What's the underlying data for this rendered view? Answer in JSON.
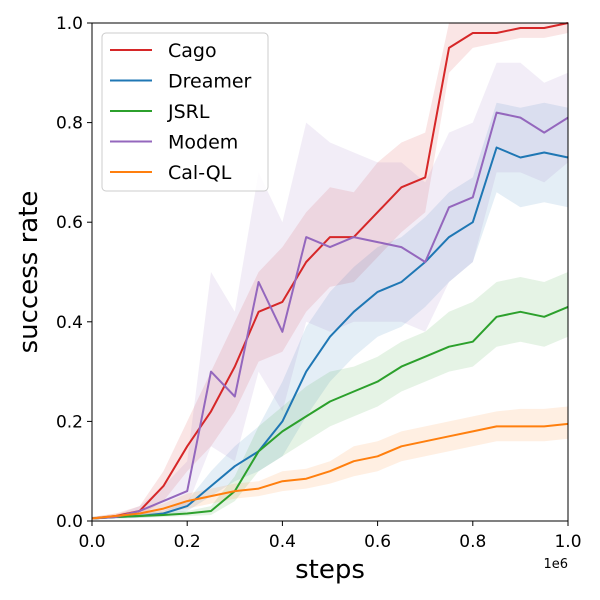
{
  "chart_data": {
    "type": "line",
    "title": "",
    "xlabel": "steps",
    "ylabel": "success rate",
    "x_offset_text": "1e6",
    "xlim": [
      0,
      1.0
    ],
    "ylim": [
      0,
      1.0
    ],
    "xticks": [
      0.0,
      0.2,
      0.4,
      0.6,
      0.8,
      1.0
    ],
    "xtick_labels": [
      "0.0",
      "0.2",
      "0.4",
      "0.6",
      "0.8",
      "1.0"
    ],
    "yticks": [
      0.0,
      0.2,
      0.4,
      0.6,
      0.8,
      1.0
    ],
    "ytick_labels": [
      "0.0",
      "0.2",
      "0.4",
      "0.6",
      "0.8",
      "1.0"
    ],
    "grid": false,
    "legend_position": "top-left",
    "x": [
      0.0,
      0.05,
      0.1,
      0.15,
      0.2,
      0.25,
      0.3,
      0.35,
      0.4,
      0.45,
      0.5,
      0.55,
      0.6,
      0.65,
      0.7,
      0.75,
      0.8,
      0.85,
      0.9,
      0.95,
      1.0
    ],
    "series": [
      {
        "name": "Cago",
        "color": "#d62728",
        "values": [
          0.005,
          0.01,
          0.02,
          0.07,
          0.15,
          0.22,
          0.31,
          0.42,
          0.44,
          0.52,
          0.57,
          0.57,
          0.62,
          0.67,
          0.69,
          0.95,
          0.98,
          0.98,
          0.99,
          0.99,
          1.0
        ],
        "lower": [
          0.003,
          0.006,
          0.01,
          0.04,
          0.1,
          0.15,
          0.22,
          0.32,
          0.34,
          0.42,
          0.47,
          0.48,
          0.53,
          0.58,
          0.62,
          0.9,
          0.95,
          0.96,
          0.97,
          0.97,
          0.98
        ],
        "upper": [
          0.008,
          0.015,
          0.03,
          0.1,
          0.2,
          0.3,
          0.4,
          0.5,
          0.55,
          0.62,
          0.67,
          0.66,
          0.72,
          0.76,
          0.78,
          1.0,
          1.0,
          1.0,
          1.0,
          1.0,
          1.0
        ]
      },
      {
        "name": "Dreamer",
        "color": "#1f77b4",
        "values": [
          0.005,
          0.008,
          0.01,
          0.015,
          0.03,
          0.07,
          0.11,
          0.14,
          0.2,
          0.3,
          0.37,
          0.42,
          0.46,
          0.48,
          0.52,
          0.57,
          0.6,
          0.75,
          0.73,
          0.74,
          0.73
        ],
        "lower": [
          0.003,
          0.005,
          0.006,
          0.01,
          0.02,
          0.05,
          0.08,
          0.1,
          0.13,
          0.21,
          0.28,
          0.33,
          0.37,
          0.39,
          0.43,
          0.48,
          0.52,
          0.66,
          0.63,
          0.64,
          0.63
        ],
        "upper": [
          0.008,
          0.012,
          0.015,
          0.02,
          0.04,
          0.1,
          0.15,
          0.19,
          0.28,
          0.39,
          0.46,
          0.51,
          0.55,
          0.57,
          0.61,
          0.66,
          0.69,
          0.84,
          0.83,
          0.84,
          0.83
        ]
      },
      {
        "name": "JSRL",
        "color": "#2ca02c",
        "values": [
          0.005,
          0.008,
          0.01,
          0.012,
          0.015,
          0.02,
          0.06,
          0.14,
          0.18,
          0.21,
          0.24,
          0.26,
          0.28,
          0.31,
          0.33,
          0.35,
          0.36,
          0.41,
          0.42,
          0.41,
          0.43
        ],
        "lower": [
          0.003,
          0.005,
          0.006,
          0.008,
          0.01,
          0.012,
          0.04,
          0.1,
          0.13,
          0.16,
          0.19,
          0.21,
          0.23,
          0.26,
          0.28,
          0.3,
          0.31,
          0.35,
          0.36,
          0.35,
          0.37
        ],
        "upper": [
          0.008,
          0.012,
          0.015,
          0.018,
          0.02,
          0.03,
          0.09,
          0.19,
          0.23,
          0.27,
          0.3,
          0.31,
          0.33,
          0.36,
          0.38,
          0.42,
          0.44,
          0.48,
          0.49,
          0.48,
          0.5
        ]
      },
      {
        "name": "Modem",
        "color": "#9467bd",
        "values": [
          0.005,
          0.008,
          0.02,
          0.04,
          0.06,
          0.3,
          0.25,
          0.48,
          0.38,
          0.57,
          0.55,
          0.57,
          0.56,
          0.55,
          0.52,
          0.63,
          0.65,
          0.82,
          0.81,
          0.78,
          0.81
        ],
        "lower": [
          0.003,
          0.005,
          0.01,
          0.02,
          0.03,
          0.15,
          0.12,
          0.3,
          0.22,
          0.4,
          0.38,
          0.4,
          0.4,
          0.4,
          0.38,
          0.48,
          0.52,
          0.7,
          0.7,
          0.68,
          0.72
        ],
        "upper": [
          0.008,
          0.012,
          0.03,
          0.07,
          0.12,
          0.5,
          0.42,
          0.7,
          0.6,
          0.8,
          0.76,
          0.74,
          0.72,
          0.72,
          0.68,
          0.78,
          0.8,
          0.92,
          0.92,
          0.88,
          0.9
        ]
      },
      {
        "name": "Cal-QL",
        "color": "#ff7f0e",
        "values": [
          0.005,
          0.01,
          0.015,
          0.025,
          0.04,
          0.05,
          0.06,
          0.065,
          0.08,
          0.085,
          0.1,
          0.12,
          0.13,
          0.15,
          0.16,
          0.17,
          0.18,
          0.19,
          0.19,
          0.19,
          0.195
        ],
        "lower": [
          0.003,
          0.006,
          0.01,
          0.015,
          0.025,
          0.035,
          0.045,
          0.05,
          0.06,
          0.065,
          0.075,
          0.09,
          0.1,
          0.12,
          0.13,
          0.14,
          0.15,
          0.16,
          0.16,
          0.16,
          0.165
        ],
        "upper": [
          0.008,
          0.015,
          0.022,
          0.035,
          0.055,
          0.065,
          0.075,
          0.08,
          0.1,
          0.105,
          0.12,
          0.15,
          0.16,
          0.18,
          0.19,
          0.2,
          0.21,
          0.22,
          0.225,
          0.225,
          0.23
        ]
      }
    ]
  }
}
